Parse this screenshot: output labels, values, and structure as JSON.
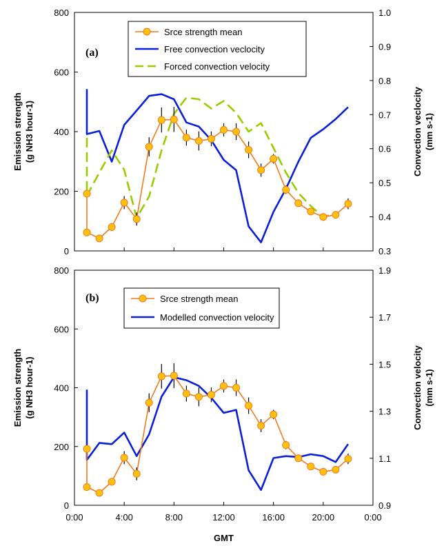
{
  "chart_data": [
    {
      "type": "line",
      "panel_label": "(a)",
      "ylabel_left": [
        "Emission strength",
        "(g NH3 hour-1)"
      ],
      "ylabel_right": [
        "Convection veclocity",
        "(mm s-1)"
      ],
      "ylim_left": [
        0,
        800
      ],
      "ylim_right": [
        0.3,
        1.0
      ],
      "left_ticks": [
        0,
        200,
        400,
        600,
        800
      ],
      "right_ticks": [
        0.3,
        0.4,
        0.5,
        0.6,
        0.7,
        0.8,
        0.9,
        1.0
      ],
      "grid": false,
      "legend_position": "top-center",
      "series": [
        {
          "name": "Srce strength mean",
          "axis": "left",
          "color": "#F07A1E",
          "marker": "circle",
          "marker_fill": "#FFC20E",
          "x": [
            1,
            1,
            2,
            3,
            4,
            5,
            6,
            7,
            8,
            9,
            10,
            11,
            12,
            13,
            14,
            15,
            16,
            17,
            18,
            19,
            20,
            21,
            22
          ],
          "y": [
            192,
            62,
            42,
            80,
            162,
            107,
            349,
            439,
            441,
            380,
            369,
            376,
            406,
            400,
            339,
            271,
            309,
            205,
            160,
            132,
            114,
            121,
            158
          ],
          "error": [
            0,
            0,
            0,
            13,
            22,
            22,
            32,
            42,
            42,
            27,
            32,
            25,
            22,
            28,
            28,
            22,
            16,
            14,
            10,
            7,
            6,
            10,
            18
          ]
        },
        {
          "name": "Free convection veclocity",
          "axis": "right",
          "color": "#0A1FD6",
          "x": [
            1,
            1,
            2,
            3,
            4,
            5,
            6,
            7,
            8,
            9,
            10,
            11,
            12,
            13,
            14,
            15,
            16,
            17,
            18,
            19,
            20,
            21,
            22
          ],
          "y": [
            0.775,
            0.643,
            0.652,
            0.562,
            0.67,
            0.712,
            0.755,
            0.76,
            0.745,
            0.677,
            0.665,
            0.625,
            0.567,
            0.537,
            0.372,
            0.325,
            0.415,
            0.482,
            0.562,
            0.632,
            0.657,
            0.687,
            0.722
          ]
        },
        {
          "name": "Forced convection velocity",
          "axis": "right",
          "color": "#99CC00",
          "dashed": true,
          "x": [
            1,
            1,
            2,
            3,
            4,
            5,
            6,
            7,
            8,
            9,
            10,
            11,
            12,
            13,
            14,
            15,
            16,
            17,
            18,
            19,
            20,
            21,
            22
          ],
          "y": [
            0.632,
            0.462,
            0.53,
            0.595,
            0.538,
            0.397,
            0.46,
            0.595,
            0.702,
            0.75,
            0.745,
            0.718,
            0.74,
            0.705,
            0.65,
            0.675,
            0.602,
            0.53,
            0.47,
            0.432,
            0.4,
            0.41,
            null
          ]
        }
      ]
    },
    {
      "type": "line",
      "panel_label": "(b)",
      "xlabel": "GMT",
      "ylabel_left": [
        "Emission strength",
        "(g NH3 hour-1)"
      ],
      "ylabel_right": [
        "Convection velocity",
        "(mm s-1)"
      ],
      "ylim_left": [
        0,
        800
      ],
      "ylim_right": [
        0.9,
        1.9
      ],
      "left_ticks": [
        0,
        200,
        400,
        600,
        800
      ],
      "right_ticks": [
        0.9,
        1.1,
        1.3,
        1.5,
        1.7,
        1.9
      ],
      "x_ticks": [
        "0:00",
        "4:00",
        "8:00",
        "12:00",
        "16:00",
        "20:00",
        "0:00"
      ],
      "grid": false,
      "legend_position": "top-center",
      "series": [
        {
          "name": "Srce strength mean",
          "axis": "left",
          "color": "#F07A1E",
          "marker": "circle",
          "marker_fill": "#FFC20E",
          "x": [
            1,
            1,
            2,
            3,
            4,
            5,
            6,
            7,
            8,
            9,
            10,
            11,
            12,
            13,
            14,
            15,
            16,
            17,
            18,
            19,
            20,
            21,
            22
          ],
          "y": [
            192,
            62,
            42,
            80,
            162,
            107,
            349,
            439,
            441,
            380,
            369,
            376,
            406,
            400,
            339,
            271,
            309,
            205,
            160,
            132,
            114,
            121,
            158
          ],
          "error": [
            0,
            0,
            0,
            13,
            22,
            22,
            32,
            42,
            42,
            27,
            32,
            25,
            22,
            28,
            28,
            22,
            16,
            14,
            10,
            7,
            6,
            10,
            18
          ]
        },
        {
          "name": "Modelled convection velocity",
          "axis": "right",
          "color": "#0A1FD6",
          "x": [
            1,
            1,
            2,
            3,
            4,
            5,
            6,
            7,
            8,
            9,
            10,
            11,
            12,
            13,
            14,
            15,
            16,
            17,
            18,
            19,
            20,
            21,
            22
          ],
          "y": [
            1.392,
            1.093,
            1.165,
            1.16,
            1.209,
            1.109,
            1.202,
            1.362,
            1.445,
            1.432,
            1.408,
            1.357,
            1.293,
            1.306,
            1.049,
            0.965,
            1.101,
            1.109,
            1.105,
            1.117,
            1.109,
            1.084,
            1.16
          ]
        }
      ]
    }
  ]
}
